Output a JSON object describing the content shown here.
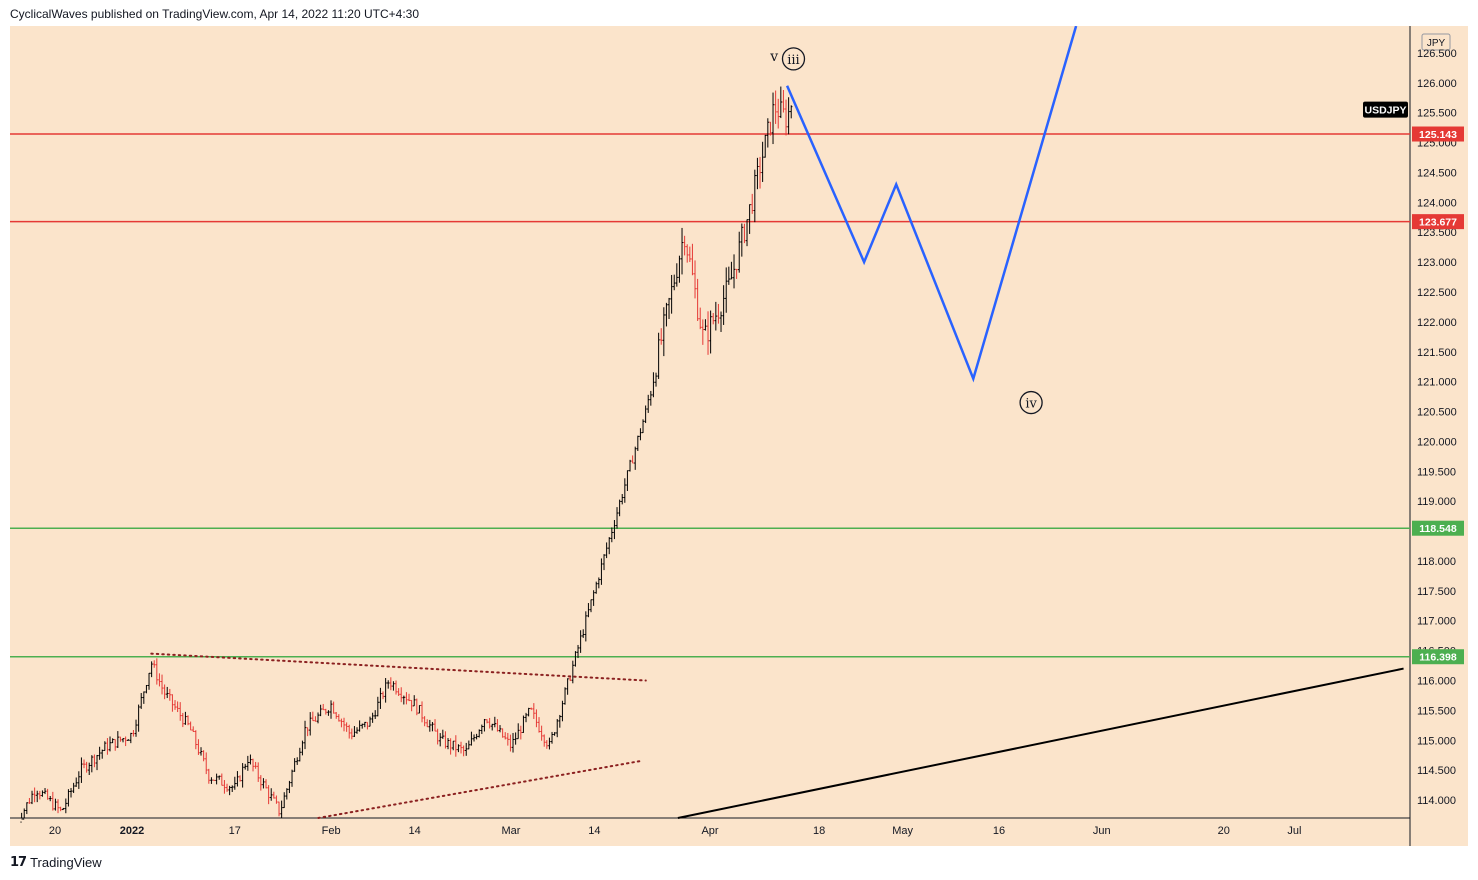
{
  "header": {
    "publish_line": "CyclicalWaves published on TradingView.com, Apr 14, 2022 11:20 UTC+4:30"
  },
  "footer": {
    "logo_icon": "tradingview-logo-icon",
    "brand": "TradingView"
  },
  "colors": {
    "background": "#fbe4cb",
    "resistance": "#e53935",
    "support": "#4caf50",
    "projection": "#2962ff",
    "trendline": "#000000",
    "triangle_dots": "#8b2020",
    "candle_up": "#000000",
    "candle_down": "#e53935"
  },
  "chart_data": {
    "type": "candlestick",
    "symbol": "USDJPY",
    "currency": "JPY",
    "ylim": [
      113.7,
      126.95
    ],
    "y_ticks": [
      "114.000",
      "114.500",
      "115.000",
      "115.500",
      "116.000",
      "116.500",
      "117.000",
      "117.500",
      "118.000",
      "118.500",
      "119.000",
      "119.500",
      "120.000",
      "120.500",
      "121.000",
      "121.500",
      "122.000",
      "122.500",
      "123.000",
      "123.500",
      "124.000",
      "124.500",
      "125.000",
      "125.500",
      "126.000",
      "126.500"
    ],
    "x_ticks": [
      {
        "label": "20",
        "date": "2021-12-20"
      },
      {
        "label": "2022",
        "date": "2022-01-01",
        "bold": true
      },
      {
        "label": "17",
        "date": "2022-01-17"
      },
      {
        "label": "Feb",
        "date": "2022-02-01"
      },
      {
        "label": "14",
        "date": "2022-02-14"
      },
      {
        "label": "Mar",
        "date": "2022-03-01"
      },
      {
        "label": "14",
        "date": "2022-03-14"
      },
      {
        "label": "Apr",
        "date": "2022-04-01"
      },
      {
        "label": "18",
        "date": "2022-04-18"
      },
      {
        "label": "May",
        "date": "2022-05-01"
      },
      {
        "label": "16",
        "date": "2022-05-16"
      },
      {
        "label": "Jun",
        "date": "2022-06-01"
      },
      {
        "label": "20",
        "date": "2022-06-20"
      },
      {
        "label": "Jul",
        "date": "2022-07-01"
      }
    ],
    "price_levels": [
      {
        "price": 125.143,
        "label": "125.143",
        "kind": "resistance"
      },
      {
        "price": 123.677,
        "label": "123.677",
        "kind": "resistance"
      },
      {
        "price": 118.548,
        "label": "118.548",
        "kind": "support"
      },
      {
        "price": 116.398,
        "label": "116.398",
        "kind": "support"
      }
    ],
    "symbol_badge": {
      "text": "USDJPY",
      "price": 125.55
    },
    "price_path": [
      [
        "2021-12-14",
        113.6
      ],
      [
        "2021-12-17",
        114.2
      ],
      [
        "2021-12-21",
        113.8
      ],
      [
        "2021-12-24",
        114.5
      ],
      [
        "2021-12-28",
        114.9
      ],
      [
        "2022-01-01",
        115.1
      ],
      [
        "2022-01-04",
        116.3
      ],
      [
        "2022-01-06",
        115.8
      ],
      [
        "2022-01-10",
        115.2
      ],
      [
        "2022-01-13",
        114.4
      ],
      [
        "2022-01-17",
        114.2
      ],
      [
        "2022-01-19",
        114.7
      ],
      [
        "2022-01-24",
        113.8
      ],
      [
        "2022-01-28",
        115.2
      ],
      [
        "2022-02-01",
        115.6
      ],
      [
        "2022-02-04",
        115.1
      ],
      [
        "2022-02-07",
        115.3
      ],
      [
        "2022-02-10",
        116.0
      ],
      [
        "2022-02-14",
        115.6
      ],
      [
        "2022-02-18",
        115.0
      ],
      [
        "2022-02-22",
        114.8
      ],
      [
        "2022-02-25",
        115.4
      ],
      [
        "2022-03-01",
        114.9
      ],
      [
        "2022-03-04",
        115.5
      ],
      [
        "2022-03-07",
        114.9
      ],
      [
        "2022-03-10",
        116.0
      ],
      [
        "2022-03-14",
        117.5
      ],
      [
        "2022-03-18",
        119.0
      ],
      [
        "2022-03-22",
        120.5
      ],
      [
        "2022-03-25",
        122.0
      ],
      [
        "2022-03-28",
        123.5
      ],
      [
        "2022-03-31",
        121.7
      ],
      [
        "2022-04-04",
        122.6
      ],
      [
        "2022-04-07",
        123.8
      ],
      [
        "2022-04-11",
        125.6
      ],
      [
        "2022-04-13",
        125.4
      ],
      [
        "2022-04-14",
        125.8
      ]
    ],
    "projection_path": [
      [
        "2022-04-13",
        125.95
      ],
      [
        "2022-04-25",
        123.0
      ],
      [
        "2022-04-30",
        124.3
      ],
      [
        "2022-05-12",
        121.05
      ],
      [
        "2022-05-28",
        126.98
      ]
    ],
    "trendline": [
      [
        "2022-03-27",
        113.7
      ],
      [
        "2022-07-18",
        116.2
      ]
    ],
    "triangle_upper": [
      [
        "2022-01-04",
        116.45
      ],
      [
        "2022-03-22",
        116.0
      ]
    ],
    "triangle_lower": [
      [
        "2022-01-30",
        113.7
      ],
      [
        "2022-03-21",
        114.65
      ]
    ],
    "wave_labels": [
      {
        "text": "v",
        "date": "2022-04-11",
        "price": 126.45,
        "circled": false
      },
      {
        "text": "iii",
        "date": "2022-04-14",
        "price": 126.4,
        "circled": true
      },
      {
        "text": "iv",
        "date": "2022-05-21",
        "price": 120.65,
        "circled": true
      }
    ]
  }
}
